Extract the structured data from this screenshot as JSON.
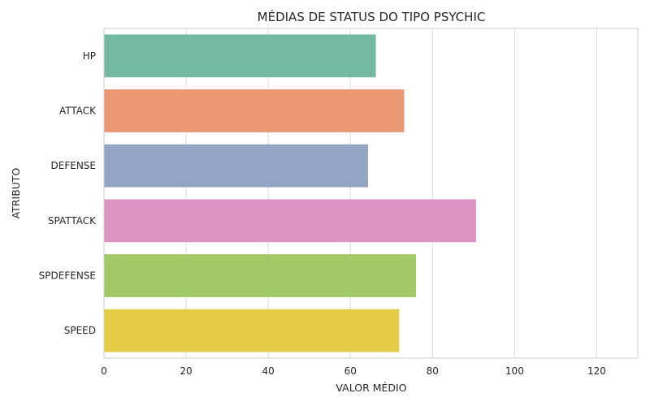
{
  "chart_data": {
    "type": "bar",
    "orientation": "horizontal",
    "title": "MÉDIAS DE STATUS DO TIPO PSYCHIC",
    "xlabel": "VALOR MÉDIO",
    "ylabel": "ATRIBUTO",
    "categories": [
      "HP",
      "ATTACK",
      "DEFENSE",
      "SPATTACK",
      "SPDEFENSE",
      "SPEED"
    ],
    "values": [
      66.2,
      73.1,
      64.3,
      90.6,
      76.0,
      71.9
    ],
    "colors": [
      "#73b8a0",
      "#ea9874",
      "#93a4c5",
      "#dc94c2",
      "#a2c966",
      "#e5cc47"
    ],
    "xlim": [
      0,
      130
    ],
    "xticks": [
      0,
      20,
      40,
      60,
      80,
      100,
      120
    ],
    "grid": true,
    "legend": "none"
  }
}
